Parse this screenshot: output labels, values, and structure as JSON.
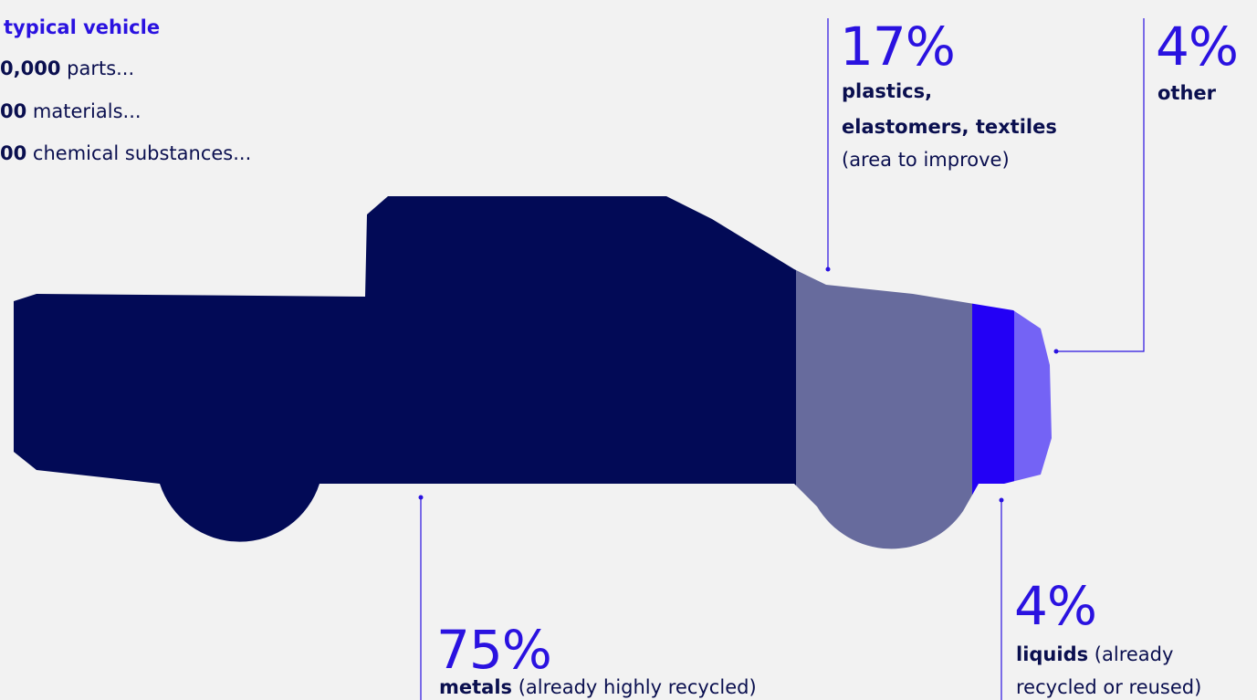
{
  "intro": {
    "title": "typical vehicle",
    "lines": [
      {
        "figure": "0,000",
        "text": "parts..."
      },
      {
        "figure": "00",
        "text": "materials..."
      },
      {
        "figure": "00",
        "text": "chemical substances..."
      }
    ]
  },
  "segments": {
    "plastics": {
      "percent": "17%",
      "line1": "plastics,",
      "line2": "elastomers, textiles",
      "line3": "(area to improve)"
    },
    "other": {
      "percent": "4%",
      "line1": "other"
    },
    "metals": {
      "percent": "75%",
      "bold": "metals",
      "text": "(already highly recycled)"
    },
    "liquids": {
      "percent": "4%",
      "bold": "liquids",
      "text": "(already",
      "line2": "recycled or reused)"
    }
  }
}
